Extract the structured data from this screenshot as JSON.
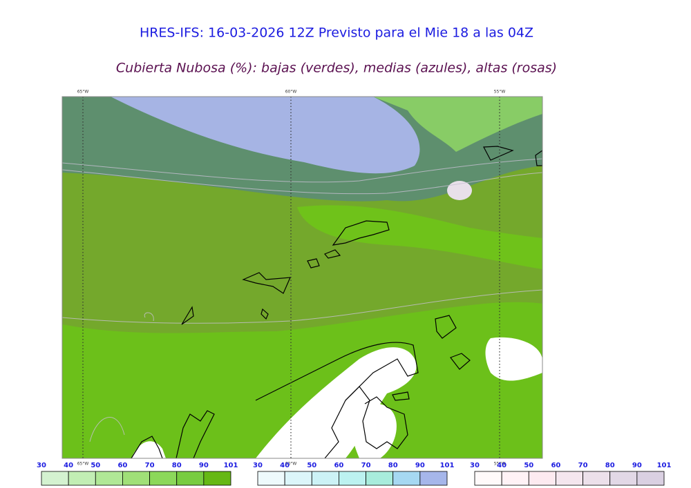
{
  "title": "HRES-IFS: 16-03-2026 12Z Previsto para el Mie 18 a las 04Z",
  "subtitle": "Cubierta Nubosa (%): bajas (verdes), medias (azules), altas (rosas)",
  "longitudes_top": [
    "65°W",
    "60°W",
    "55°W"
  ],
  "longitudes_bottom": [
    "65°W",
    "60°W",
    "55°W"
  ],
  "legends": [
    {
      "ticks": [
        30,
        40,
        50,
        60,
        70,
        80,
        90,
        101
      ],
      "colors": [
        "#d4f2d0",
        "#c2eeb4",
        "#b0e896",
        "#a0e078",
        "#8cd85a",
        "#78cc40",
        "#66b814"
      ]
    },
    {
      "ticks": [
        30,
        40,
        50,
        60,
        70,
        80,
        90,
        101
      ],
      "colors": [
        "#eefafc",
        "#dcf6fa",
        "#ccf2f6",
        "#bcf2f0",
        "#a8ecdc",
        "#a6d8f2",
        "#a6b6ea"
      ]
    },
    {
      "ticks": [
        30,
        40,
        50,
        60,
        70,
        80,
        90,
        101
      ],
      "colors": [
        "#fffafa",
        "#fff2f6",
        "#fdeaf0",
        "#f4e6ee",
        "#ece0ea",
        "#e2d8e6",
        "#dad0e2"
      ]
    }
  ]
}
